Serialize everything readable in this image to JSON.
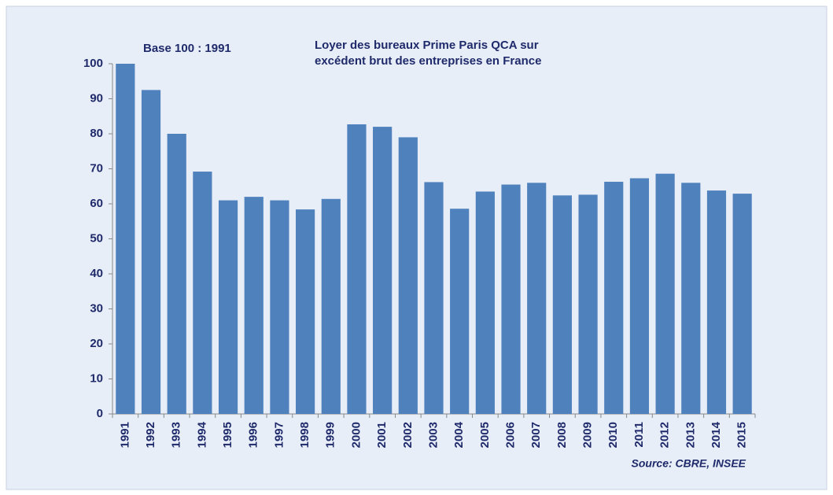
{
  "chart_data": {
    "type": "bar",
    "title": [
      "Loyer des bureaux Prime Paris QCA sur",
      "excédent brut des entreprises en France"
    ],
    "subtitle": "Base 100 : 1991",
    "source": "Source: CBRE, INSEE",
    "categories": [
      "1991",
      "1992",
      "1993",
      "1994",
      "1995",
      "1996",
      "1997",
      "1998",
      "1999",
      "2000",
      "2001",
      "2002",
      "2003",
      "2004",
      "2005",
      "2006",
      "2007",
      "2008",
      "2009",
      "2010",
      "2011",
      "2012",
      "2013",
      "2014",
      "2015"
    ],
    "values": [
      100,
      92.5,
      80,
      69.2,
      61,
      62,
      61,
      58.4,
      61.4,
      82.7,
      82,
      79,
      66.2,
      58.6,
      63.5,
      65.5,
      66,
      62.4,
      62.6,
      66.3,
      67.3,
      68.6,
      66,
      63.8,
      62.9
    ],
    "color": "#4f81bd",
    "ylim": [
      0,
      100
    ],
    "yticks": [
      0,
      10,
      20,
      30,
      40,
      50,
      60,
      70,
      80,
      90,
      100
    ]
  }
}
